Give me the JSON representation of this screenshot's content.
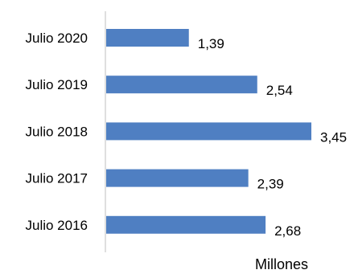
{
  "chart_data": {
    "type": "bar",
    "orientation": "horizontal",
    "categories": [
      "Julio 2020",
      "Julio 2019",
      "Julio 2018",
      "Julio 2017",
      "Julio 2016"
    ],
    "values": [
      1.39,
      2.54,
      3.45,
      2.39,
      2.68
    ],
    "value_labels": [
      "1,39",
      "2,54",
      "3,45",
      "2,39",
      "2,68"
    ],
    "unit_label": "Millones",
    "xlim": [
      0,
      3.45
    ],
    "grid": false,
    "bar_color": "#4f7fc2",
    "axis_color": "#bfbfbf"
  }
}
